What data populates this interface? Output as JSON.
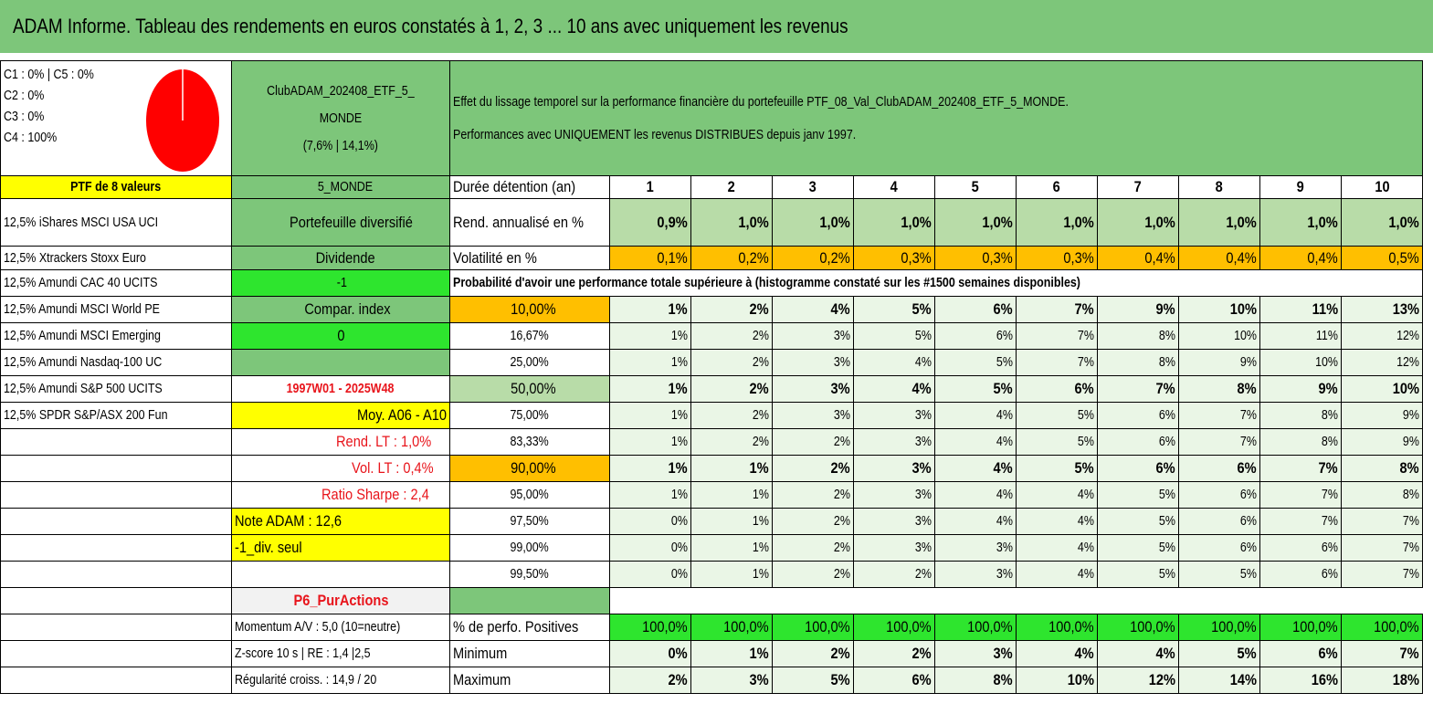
{
  "title": "ADAM Informe. Tableau des rendements en euros constatés à 1, 2, 3 ... 10 ans avec uniquement les revenus",
  "colors": {
    "green": "#7dc67a",
    "light_green": "#b8dca8",
    "bright_green": "#2ee52e",
    "yellow": "#ffff00",
    "orange": "#ffbf00",
    "red_text": "#e8141b",
    "pie_red": "#ff0000"
  },
  "pie": {
    "labels": [
      "C1 : 0% | C5 : 0%",
      "C2 : 0%",
      "C3 : 0%",
      "C4 : 100%"
    ],
    "c4_share": 100
  },
  "portfolio": {
    "name_line1": "ClubADAM_202408_ETF_5_",
    "name_line2": "MONDE",
    "stats": "(7,6% | 14,1%)"
  },
  "description": {
    "line1": "Effet du lissage temporel sur la performance financière du portefeuille PTF_08_Val_ClubADAM_202408_ETF_5_MONDE.",
    "line2": "Performances avec UNIQUEMENT les revenus DISTRIBUES depuis janv 1997."
  },
  "ptf_label": "PTF de 8 valeurs",
  "holdings": [
    "12,5% iShares MSCI USA UCI",
    "12,5% Xtrackers Stoxx Euro",
    "12,5% Amundi CAC 40 UCITS",
    "12,5% Amundi MSCI World PE",
    "12,5% Amundi MSCI Emerging",
    "12,5% Amundi Nasdaq-100 UC",
    "12,5% Amundi S&P 500 UCITS",
    "12,5% SPDR S&P/ASX 200 Fun"
  ],
  "info": [
    "5_MONDE",
    "Portefeuille diversifié",
    "Dividende",
    "-1",
    "Compar. index",
    "0",
    "",
    "1997W01 - 2025W48",
    "Moy. A06 - A10",
    "Rend. LT : 1,0%",
    "Vol. LT : 0,4%",
    "Ratio Sharpe : 2,4",
    "Note ADAM : 12,6",
    "-1_div. seul",
    "",
    "P6_PurActions",
    "Momentum A/V : 5,0 (10=neutre)",
    "Z-score 10 s | RE : 1,4 |2,5",
    "Régularité croiss. : 14,9 / 20"
  ],
  "years_label": "Durée détention (an)",
  "years": [
    "1",
    "2",
    "3",
    "4",
    "5",
    "6",
    "7",
    "8",
    "9",
    "10"
  ],
  "rend_label": "Rend. annualisé en %",
  "rend": [
    "0,9%",
    "1,0%",
    "1,0%",
    "1,0%",
    "1,0%",
    "1,0%",
    "1,0%",
    "1,0%",
    "1,0%",
    "1,0%"
  ],
  "vol_label": "Volatilité en %",
  "vol": [
    "0,1%",
    "0,2%",
    "0,2%",
    "0,3%",
    "0,3%",
    "0,3%",
    "0,4%",
    "0,4%",
    "0,4%",
    "0,5%"
  ],
  "prob_label": "Probabilité d'avoir une performance totale supérieure à (histogramme constaté sur les #1500 semaines disponibles)",
  "percentiles": [
    {
      "p": "10,00%",
      "v": [
        "1%",
        "2%",
        "4%",
        "5%",
        "6%",
        "7%",
        "9%",
        "10%",
        "11%",
        "13%"
      ]
    },
    {
      "p": "16,67%",
      "v": [
        "1%",
        "2%",
        "3%",
        "5%",
        "6%",
        "7%",
        "8%",
        "10%",
        "11%",
        "12%"
      ]
    },
    {
      "p": "25,00%",
      "v": [
        "1%",
        "2%",
        "3%",
        "4%",
        "5%",
        "7%",
        "8%",
        "9%",
        "10%",
        "12%"
      ]
    },
    {
      "p": "50,00%",
      "v": [
        "1%",
        "2%",
        "3%",
        "4%",
        "5%",
        "6%",
        "7%",
        "8%",
        "9%",
        "10%"
      ]
    },
    {
      "p": "75,00%",
      "v": [
        "1%",
        "2%",
        "3%",
        "3%",
        "4%",
        "5%",
        "6%",
        "7%",
        "8%",
        "9%"
      ]
    },
    {
      "p": "83,33%",
      "v": [
        "1%",
        "2%",
        "2%",
        "3%",
        "4%",
        "5%",
        "6%",
        "7%",
        "8%",
        "9%"
      ]
    },
    {
      "p": "90,00%",
      "v": [
        "1%",
        "1%",
        "2%",
        "3%",
        "4%",
        "5%",
        "6%",
        "6%",
        "7%",
        "8%"
      ]
    },
    {
      "p": "95,00%",
      "v": [
        "1%",
        "1%",
        "2%",
        "3%",
        "4%",
        "4%",
        "5%",
        "6%",
        "7%",
        "8%"
      ]
    },
    {
      "p": "97,50%",
      "v": [
        "0%",
        "1%",
        "2%",
        "3%",
        "4%",
        "4%",
        "5%",
        "6%",
        "7%",
        "7%"
      ]
    },
    {
      "p": "99,00%",
      "v": [
        "0%",
        "1%",
        "2%",
        "3%",
        "3%",
        "4%",
        "5%",
        "6%",
        "6%",
        "7%"
      ]
    },
    {
      "p": "99,50%",
      "v": [
        "0%",
        "1%",
        "2%",
        "2%",
        "3%",
        "4%",
        "5%",
        "5%",
        "6%",
        "7%"
      ]
    }
  ],
  "pos_label": "% de perfo. Positives",
  "pos": [
    "100,0%",
    "100,0%",
    "100,0%",
    "100,0%",
    "100,0%",
    "100,0%",
    "100,0%",
    "100,0%",
    "100,0%",
    "100,0%"
  ],
  "min_label": "Minimum",
  "min": [
    "0%",
    "1%",
    "2%",
    "2%",
    "3%",
    "4%",
    "4%",
    "5%",
    "6%",
    "7%"
  ],
  "max_label": "Maximum",
  "max": [
    "2%",
    "3%",
    "5%",
    "6%",
    "8%",
    "10%",
    "12%",
    "14%",
    "16%",
    "18%"
  ]
}
